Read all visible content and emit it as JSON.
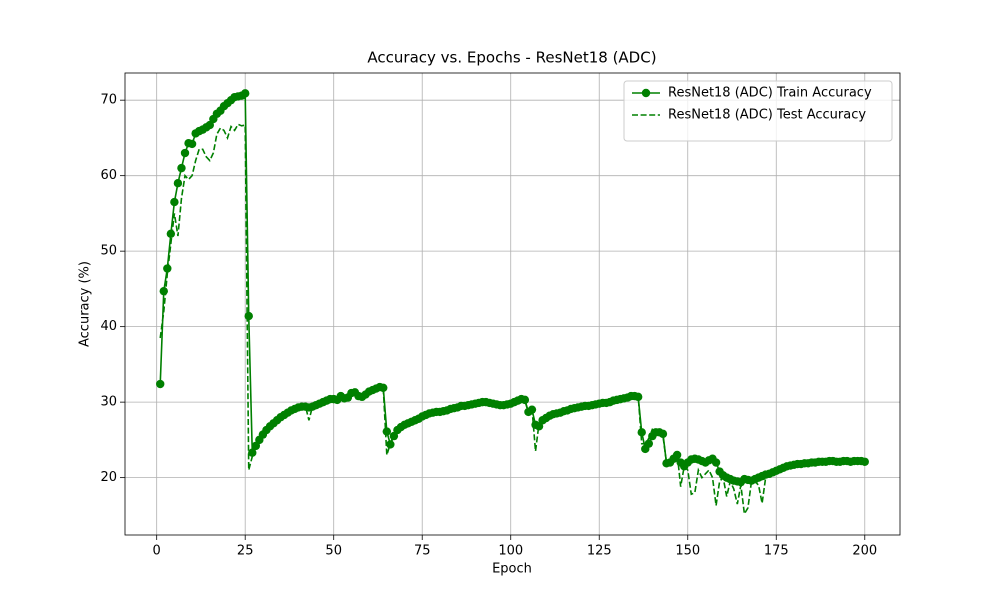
{
  "chart_data": {
    "type": "line",
    "title": "Accuracy vs. Epochs - ResNet18 (ADC)",
    "x_label": "Epoch",
    "y_label": "Accuracy (%)",
    "x": [
      1,
      2,
      3,
      4,
      5,
      6,
      7,
      8,
      9,
      10,
      11,
      12,
      13,
      14,
      15,
      16,
      17,
      18,
      19,
      20,
      21,
      22,
      23,
      24,
      25,
      26,
      27,
      28,
      29,
      30,
      31,
      32,
      33,
      34,
      35,
      36,
      37,
      38,
      39,
      40,
      41,
      42,
      43,
      44,
      45,
      46,
      47,
      48,
      49,
      50,
      51,
      52,
      53,
      54,
      55,
      56,
      57,
      58,
      59,
      60,
      61,
      62,
      63,
      64,
      65,
      66,
      67,
      68,
      69,
      70,
      71,
      72,
      73,
      74,
      75,
      76,
      77,
      78,
      79,
      80,
      81,
      82,
      83,
      84,
      85,
      86,
      87,
      88,
      89,
      90,
      91,
      92,
      93,
      94,
      95,
      96,
      97,
      98,
      99,
      100,
      101,
      102,
      103,
      104,
      105,
      106,
      107,
      108,
      109,
      110,
      111,
      112,
      113,
      114,
      115,
      116,
      117,
      118,
      119,
      120,
      121,
      122,
      123,
      124,
      125,
      126,
      127,
      128,
      129,
      130,
      131,
      132,
      133,
      134,
      135,
      136,
      137,
      138,
      139,
      140,
      141,
      142,
      143,
      144,
      145,
      146,
      147,
      148,
      149,
      150,
      151,
      152,
      153,
      154,
      155,
      156,
      157,
      158,
      159,
      160,
      161,
      162,
      163,
      164,
      165,
      166,
      167,
      168,
      169,
      170,
      171,
      172,
      173,
      174,
      175,
      176,
      177,
      178,
      179,
      180,
      181,
      182,
      183,
      184,
      185,
      186,
      187,
      188,
      189,
      190,
      191,
      192,
      193,
      194,
      195,
      196,
      197,
      198,
      199,
      200
    ],
    "series": [
      {
        "name": "ResNet18 (ADC) Train Accuracy",
        "color": "#008000",
        "linestyle": "solid",
        "marker": "circle",
        "values": [
          32.4,
          44.7,
          47.7,
          52.3,
          56.5,
          59,
          61,
          63,
          64.3,
          64.2,
          65.6,
          65.9,
          66.1,
          66.4,
          66.7,
          67.5,
          68.2,
          68.6,
          69.2,
          69.6,
          70,
          70.4,
          70.5,
          70.6,
          70.9,
          41.4,
          23.3,
          24.2,
          25,
          25.7,
          26.3,
          26.8,
          27.2,
          27.6,
          28,
          28.3,
          28.6,
          28.9,
          29.1,
          29.3,
          29.4,
          29.4,
          29.3,
          29.4,
          29.6,
          29.8,
          30,
          30.2,
          30.4,
          30.4,
          30.3,
          30.8,
          30.5,
          30.6,
          31.2,
          31.3,
          30.8,
          30.7,
          31,
          31.4,
          31.6,
          31.8,
          32,
          31.9,
          26.1,
          24.4,
          25.5,
          26.3,
          26.7,
          27,
          27.2,
          27.4,
          27.6,
          27.8,
          28.1,
          28.3,
          28.5,
          28.6,
          28.7,
          28.7,
          28.8,
          28.9,
          29.1,
          29.2,
          29.3,
          29.5,
          29.5,
          29.6,
          29.7,
          29.8,
          29.9,
          30,
          30,
          29.9,
          29.8,
          29.7,
          29.6,
          29.6,
          29.7,
          29.8,
          30,
          30.2,
          30.4,
          30.3,
          28.7,
          29,
          27,
          26.8,
          27.6,
          27.9,
          28.2,
          28.4,
          28.5,
          28.6,
          28.8,
          28.9,
          29.1,
          29.2,
          29.3,
          29.4,
          29.5,
          29.5,
          29.6,
          29.7,
          29.8,
          29.9,
          29.9,
          30,
          30.2,
          30.3,
          30.4,
          30.5,
          30.6,
          30.8,
          30.8,
          30.7,
          26,
          23.8,
          24.5,
          25.5,
          26,
          26,
          25.8,
          21.9,
          22,
          22.5,
          23,
          22,
          21.5,
          22,
          22.4,
          22.5,
          22.4,
          22.2,
          22,
          22.3,
          22.5,
          22,
          20.8,
          20.3,
          20,
          19.8,
          19.6,
          19.5,
          19.4,
          19.8,
          19.7,
          19.6,
          19.8,
          20,
          20.2,
          20.4,
          20.5,
          20.7,
          20.9,
          21.1,
          21.3,
          21.5,
          21.6,
          21.7,
          21.8,
          21.8,
          21.9,
          21.9,
          22,
          22,
          22.1,
          22.1,
          22.1,
          22.2,
          22.2,
          22.1,
          22.1,
          22.2,
          22.2,
          22.1,
          22.2,
          22.2,
          22.2,
          22.1
        ]
      },
      {
        "name": "ResNet18 (ADC) Test Accuracy",
        "color": "#008000",
        "linestyle": "dashed",
        "values": [
          38.5,
          42,
          47,
          51,
          55,
          52,
          57,
          60,
          59.5,
          60,
          62,
          63.5,
          63.5,
          62.5,
          62,
          63,
          65.5,
          66.3,
          66,
          65,
          66.5,
          66,
          66.8,
          66.6,
          66.7,
          21,
          22.8,
          24.5,
          25.3,
          25.8,
          26.5,
          26.9,
          27.4,
          27.8,
          28.1,
          28.4,
          28.8,
          29,
          29.2,
          29.4,
          29.5,
          29.5,
          27.6,
          29.4,
          29.6,
          29.8,
          30,
          30.3,
          30.5,
          30.6,
          30.4,
          31,
          30.6,
          30.8,
          31.4,
          31.5,
          31,
          30.7,
          31.2,
          31.6,
          31.8,
          32,
          32.2,
          31.8,
          23,
          24.5,
          25.8,
          26.5,
          26.9,
          27.3,
          27.5,
          27.7,
          27.8,
          28,
          28.3,
          28.5,
          28.6,
          28.8,
          28.9,
          28.9,
          29,
          29.1,
          29.3,
          29.4,
          29.5,
          29.6,
          29.7,
          29.8,
          29.8,
          29.9,
          30,
          30.1,
          30.1,
          30,
          29.9,
          29.8,
          29.7,
          29.7,
          29.8,
          30,
          30.1,
          30.3,
          30.5,
          30.2,
          28.6,
          29.2,
          23.5,
          27.2,
          27.8,
          28.1,
          28.4,
          28.6,
          28.7,
          28.8,
          29,
          29.1,
          29.3,
          29.4,
          29.5,
          29.6,
          29.7,
          29.6,
          29.7,
          29.8,
          29.9,
          30,
          30,
          30.1,
          30.3,
          30.4,
          30.5,
          30.6,
          30.7,
          30.9,
          30.9,
          30.8,
          24.5,
          24.5,
          25.2,
          26.4,
          26.2,
          26,
          25.5,
          22,
          22.3,
          22.8,
          23.3,
          18.8,
          21.5,
          21,
          17.8,
          18,
          21,
          20,
          20.5,
          21,
          20,
          16.3,
          19.5,
          20,
          17.5,
          19.5,
          18.5,
          16.5,
          19,
          15.2,
          16,
          19.5,
          19.5,
          19,
          16.6,
          20,
          20.4,
          20.6,
          20.9,
          21.2,
          21.4,
          21.7,
          21.8,
          21.9,
          22,
          21.7,
          22,
          22.1,
          22.2,
          22.3,
          22.2,
          22.4,
          22.2,
          22.3,
          22.4,
          22.2,
          22.3,
          22.3,
          22.2,
          22.3,
          22.2,
          22.3,
          22.3,
          22.1
        ]
      }
    ],
    "xlim": [
      -8.95,
      209.95
    ],
    "ylim": [
      12.4,
      73.6
    ],
    "xticks": [
      0,
      25,
      50,
      75,
      100,
      125,
      150,
      175,
      200
    ],
    "yticks": [
      20,
      30,
      40,
      50,
      60,
      70
    ],
    "grid": true,
    "legend": "upper right"
  }
}
